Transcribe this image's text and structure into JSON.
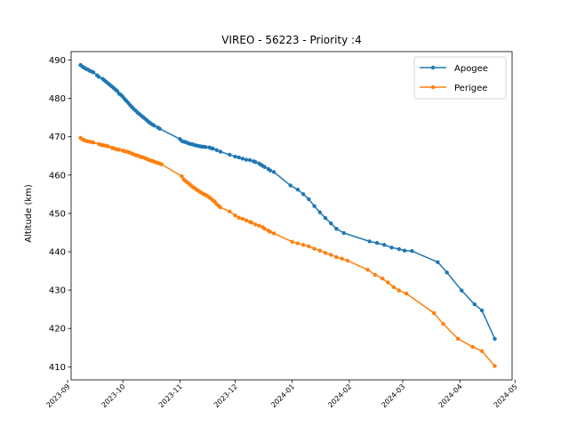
{
  "chart_data": {
    "type": "line",
    "title": "VIREO - 56223 - Priority :4",
    "xlabel": "",
    "ylabel": "Altitude (km)",
    "xlim": [
      "2023-09-01",
      "2024-05-01"
    ],
    "ylim": [
      406.6,
      492.2
    ],
    "grid": false,
    "legend_position": "top-right",
    "x_ticks": [
      "2023-09",
      "2023-10",
      "2023-11",
      "2023-12",
      "2024-01",
      "2024-02",
      "2024-03",
      "2024-04",
      "2024-05"
    ],
    "y_ticks": [
      410,
      420,
      430,
      440,
      450,
      460,
      470,
      480,
      490
    ],
    "series": [
      {
        "name": "Apogee",
        "color": "#1f77b4",
        "points": [
          [
            "2023-09-08",
            488.7
          ],
          [
            "2023-09-09",
            488.3
          ],
          [
            "2023-09-10",
            488.0
          ],
          [
            "2023-09-11",
            487.7
          ],
          [
            "2023-09-12",
            487.5
          ],
          [
            "2023-09-13",
            487.2
          ],
          [
            "2023-09-14",
            487.0
          ],
          [
            "2023-09-15",
            486.8
          ],
          [
            "2023-09-17",
            486.0
          ],
          [
            "2023-09-18",
            485.6
          ],
          [
            "2023-09-20",
            485.1
          ],
          [
            "2023-09-21",
            484.7
          ],
          [
            "2023-09-22",
            484.3
          ],
          [
            "2023-09-23",
            483.9
          ],
          [
            "2023-09-24",
            483.5
          ],
          [
            "2023-09-25",
            483.1
          ],
          [
            "2023-09-26",
            482.7
          ],
          [
            "2023-09-27",
            482.3
          ],
          [
            "2023-09-28",
            481.9
          ],
          [
            "2023-09-29",
            481.2
          ],
          [
            "2023-09-30",
            480.9
          ],
          [
            "2023-10-01",
            480.4
          ],
          [
            "2023-10-02",
            479.8
          ],
          [
            "2023-10-03",
            479.3
          ],
          [
            "2023-10-04",
            478.8
          ],
          [
            "2023-10-05",
            478.2
          ],
          [
            "2023-10-06",
            477.7
          ],
          [
            "2023-10-07",
            477.2
          ],
          [
            "2023-10-08",
            476.8
          ],
          [
            "2023-10-09",
            476.3
          ],
          [
            "2023-10-10",
            475.9
          ],
          [
            "2023-10-11",
            475.5
          ],
          [
            "2023-10-12",
            475.1
          ],
          [
            "2023-10-13",
            474.7
          ],
          [
            "2023-10-14",
            474.3
          ],
          [
            "2023-10-15",
            473.9
          ],
          [
            "2023-10-16",
            473.5
          ],
          [
            "2023-10-17",
            473.2
          ],
          [
            "2023-10-18",
            472.9
          ],
          [
            "2023-10-20",
            472.4
          ],
          [
            "2023-10-21",
            472.1
          ],
          [
            "2023-11-01",
            469.4
          ],
          [
            "2023-11-02",
            468.9
          ],
          [
            "2023-11-03",
            468.7
          ],
          [
            "2023-11-04",
            468.6
          ],
          [
            "2023-11-05",
            468.4
          ],
          [
            "2023-11-06",
            468.2
          ],
          [
            "2023-11-07",
            468.1
          ],
          [
            "2023-11-08",
            468.0
          ],
          [
            "2023-11-09",
            467.8
          ],
          [
            "2023-11-10",
            467.7
          ],
          [
            "2023-11-11",
            467.6
          ],
          [
            "2023-11-12",
            467.5
          ],
          [
            "2023-11-13",
            467.4
          ],
          [
            "2023-11-14",
            467.4
          ],
          [
            "2023-11-15",
            467.3
          ],
          [
            "2023-11-17",
            467.2
          ],
          [
            "2023-11-18",
            467.0
          ],
          [
            "2023-11-19",
            466.9
          ],
          [
            "2023-11-21",
            466.5
          ],
          [
            "2023-11-23",
            466.1
          ],
          [
            "2023-11-28",
            465.3
          ],
          [
            "2023-12-01",
            464.8
          ],
          [
            "2023-12-03",
            464.6
          ],
          [
            "2023-12-05",
            464.3
          ],
          [
            "2023-12-07",
            464.0
          ],
          [
            "2023-12-09",
            463.9
          ],
          [
            "2023-12-11",
            463.6
          ],
          [
            "2023-12-12",
            463.4
          ],
          [
            "2023-12-14",
            463.0
          ],
          [
            "2023-12-15",
            462.7
          ],
          [
            "2023-12-16",
            462.4
          ],
          [
            "2023-12-17",
            462.1
          ],
          [
            "2023-12-19",
            461.6
          ],
          [
            "2023-12-20",
            461.2
          ],
          [
            "2023-12-22",
            460.8
          ],
          [
            "2023-12-31",
            457.3
          ],
          [
            "2024-01-04",
            456.2
          ],
          [
            "2024-01-07",
            455.0
          ],
          [
            "2024-01-10",
            453.7
          ],
          [
            "2024-01-13",
            451.9
          ],
          [
            "2024-01-16",
            450.3
          ],
          [
            "2024-01-19",
            448.8
          ],
          [
            "2024-01-22",
            447.4
          ],
          [
            "2024-01-25",
            446.0
          ],
          [
            "2024-01-29",
            444.9
          ],
          [
            "2024-02-12",
            442.7
          ],
          [
            "2024-02-16",
            442.3
          ],
          [
            "2024-02-20",
            441.8
          ],
          [
            "2024-02-24",
            441.1
          ],
          [
            "2024-02-28",
            440.7
          ],
          [
            "2024-03-02",
            440.3
          ],
          [
            "2024-03-06",
            440.2
          ],
          [
            "2024-03-20",
            437.3
          ],
          [
            "2024-03-25",
            434.6
          ],
          [
            "2024-04-02",
            429.9
          ],
          [
            "2024-04-09",
            426.3
          ],
          [
            "2024-04-13",
            424.7
          ],
          [
            "2024-04-20",
            417.3
          ]
        ]
      },
      {
        "name": "Perigee",
        "color": "#ff7f0e",
        "points": [
          [
            "2023-09-08",
            469.7
          ],
          [
            "2023-09-09",
            469.3
          ],
          [
            "2023-09-10",
            469.1
          ],
          [
            "2023-09-11",
            468.9
          ],
          [
            "2023-09-12",
            468.8
          ],
          [
            "2023-09-13",
            468.7
          ],
          [
            "2023-09-14",
            468.6
          ],
          [
            "2023-09-15",
            468.5
          ],
          [
            "2023-09-18",
            468.1
          ],
          [
            "2023-09-19",
            467.9
          ],
          [
            "2023-09-20",
            467.8
          ],
          [
            "2023-09-21",
            467.7
          ],
          [
            "2023-09-22",
            467.6
          ],
          [
            "2023-09-23",
            467.5
          ],
          [
            "2023-09-25",
            467.1
          ],
          [
            "2023-09-26",
            467.0
          ],
          [
            "2023-09-27",
            466.8
          ],
          [
            "2023-09-28",
            466.7
          ],
          [
            "2023-09-29",
            466.6
          ],
          [
            "2023-10-01",
            466.4
          ],
          [
            "2023-10-02",
            466.2
          ],
          [
            "2023-10-03",
            466.1
          ],
          [
            "2023-10-04",
            466.0
          ],
          [
            "2023-10-05",
            465.8
          ],
          [
            "2023-10-06",
            465.6
          ],
          [
            "2023-10-07",
            465.4
          ],
          [
            "2023-10-08",
            465.2
          ],
          [
            "2023-10-09",
            465.1
          ],
          [
            "2023-10-10",
            464.9
          ],
          [
            "2023-10-11",
            464.7
          ],
          [
            "2023-10-12",
            464.6
          ],
          [
            "2023-10-13",
            464.4
          ],
          [
            "2023-10-14",
            464.2
          ],
          [
            "2023-10-15",
            464.0
          ],
          [
            "2023-10-16",
            463.8
          ],
          [
            "2023-10-17",
            463.7
          ],
          [
            "2023-10-18",
            463.5
          ],
          [
            "2023-10-19",
            463.3
          ],
          [
            "2023-10-20",
            463.2
          ],
          [
            "2023-10-21",
            463.0
          ],
          [
            "2023-10-22",
            462.8
          ],
          [
            "2023-11-02",
            459.7
          ],
          [
            "2023-11-03",
            458.9
          ],
          [
            "2023-11-04",
            458.5
          ],
          [
            "2023-11-05",
            458.1
          ],
          [
            "2023-11-06",
            457.7
          ],
          [
            "2023-11-07",
            457.3
          ],
          [
            "2023-11-08",
            456.9
          ],
          [
            "2023-11-09",
            456.6
          ],
          [
            "2023-11-10",
            456.2
          ],
          [
            "2023-11-11",
            455.9
          ],
          [
            "2023-11-12",
            455.6
          ],
          [
            "2023-11-13",
            455.3
          ],
          [
            "2023-11-14",
            455.0
          ],
          [
            "2023-11-15",
            454.8
          ],
          [
            "2023-11-16",
            454.5
          ],
          [
            "2023-11-17",
            454.2
          ],
          [
            "2023-11-18",
            453.8
          ],
          [
            "2023-11-19",
            453.4
          ],
          [
            "2023-11-20",
            453.0
          ],
          [
            "2023-11-21",
            452.4
          ],
          [
            "2023-11-22",
            452.0
          ],
          [
            "2023-11-23",
            451.6
          ],
          [
            "2023-11-28",
            450.5
          ],
          [
            "2023-12-01",
            449.5
          ],
          [
            "2023-12-03",
            448.9
          ],
          [
            "2023-12-05",
            448.6
          ],
          [
            "2023-12-07",
            448.2
          ],
          [
            "2023-12-09",
            447.8
          ],
          [
            "2023-12-10",
            447.6
          ],
          [
            "2023-12-12",
            447.1
          ],
          [
            "2023-12-14",
            446.8
          ],
          [
            "2023-12-16",
            446.4
          ],
          [
            "2023-12-17",
            446.0
          ],
          [
            "2023-12-19",
            445.5
          ],
          [
            "2023-12-20",
            445.2
          ],
          [
            "2023-12-22",
            444.8
          ],
          [
            "2024-01-01",
            442.6
          ],
          [
            "2024-01-04",
            442.2
          ],
          [
            "2024-01-07",
            441.8
          ],
          [
            "2024-01-10",
            441.4
          ],
          [
            "2024-01-13",
            440.8
          ],
          [
            "2024-01-16",
            440.3
          ],
          [
            "2024-01-19",
            439.7
          ],
          [
            "2024-01-22",
            439.2
          ],
          [
            "2024-01-25",
            438.6
          ],
          [
            "2024-01-28",
            438.2
          ],
          [
            "2024-01-31",
            437.7
          ],
          [
            "2024-02-11",
            435.3
          ],
          [
            "2024-02-15",
            434.0
          ],
          [
            "2024-02-19",
            433.0
          ],
          [
            "2024-02-22",
            432.0
          ],
          [
            "2024-02-25",
            430.8
          ],
          [
            "2024-02-28",
            429.9
          ],
          [
            "2024-03-03",
            429.1
          ],
          [
            "2024-03-18",
            424.0
          ],
          [
            "2024-03-23",
            421.2
          ],
          [
            "2024-03-31",
            417.3
          ],
          [
            "2024-04-08",
            415.2
          ],
          [
            "2024-04-13",
            414.1
          ],
          [
            "2024-04-20",
            410.2
          ]
        ]
      }
    ]
  }
}
